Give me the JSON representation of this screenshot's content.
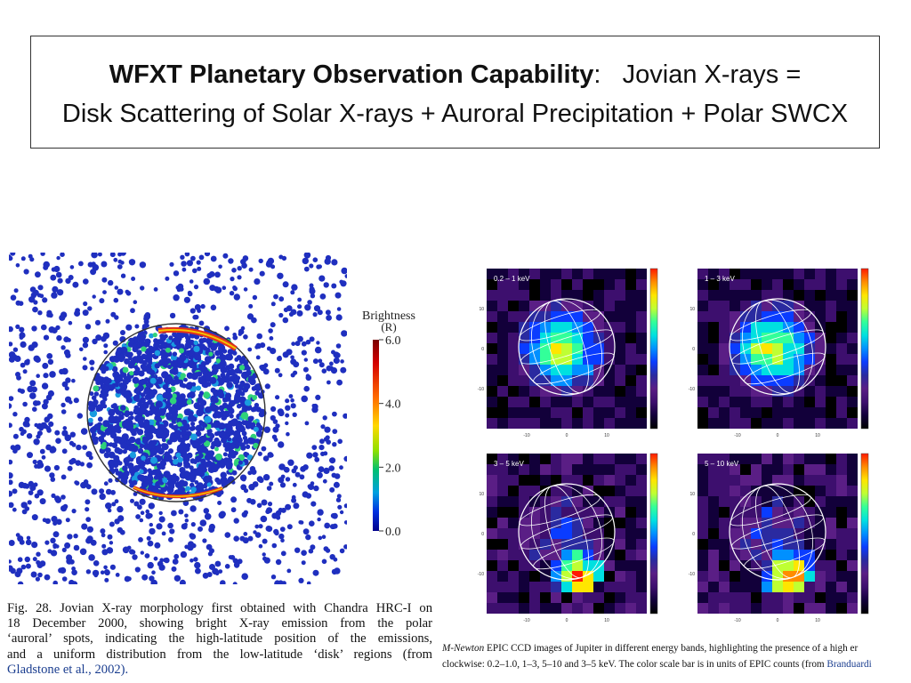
{
  "slide": {
    "title_bold": "WFXT Planetary Observation Capability",
    "title_colon": ":",
    "title_rest": "Jovian X-rays =",
    "title_line2": "Disk Scattering of Solar X-rays + Auroral Precipitation + Polar SWCX"
  },
  "left_figure": {
    "colorbar_title": "Brightness",
    "colorbar_unit": "(R)",
    "colorbar_ticks": [
      "6.0",
      "4.0",
      "2.0",
      "0.0"
    ],
    "caption_lines": [
      "Fig. 28.  Jovian X-ray morphology first obtained with Chandra HRC-I on",
      "18 December 2000, showing bright X-ray emission from the polar",
      "‘auroral’ spots, indicating the high-latitude position of the emissions,",
      "and a uniform distribution from the low-latitude ‘disk’ regions (from"
    ],
    "caption_last": "Gladstone et al., 2002)."
  },
  "right_figure": {
    "panels": [
      {
        "label": "0.2 – 1 keV"
      },
      {
        "label": "1 – 3 keV"
      },
      {
        "label": "3 – 5 keV"
      },
      {
        "label": "5 – 10 keV"
      }
    ],
    "tick_neg": "-10",
    "tick_zero": "0",
    "tick_pos": "10",
    "caption_line1_italic": "M-Newton",
    "caption_line1_rest": " EPIC CCD images of Jupiter in different energy bands, highlighting the presence of a high er",
    "caption_line2_rest": "clockwise: 0.2–1.0, 1–3, 5–10 and 3–5 keV. The color scale bar is in units of EPIC counts (from ",
    "caption_line2_ref": "Branduardi"
  },
  "colors": {
    "dot_blue": "#1f2fbf",
    "bar_top": "#8b0000",
    "bar_bottom": "#00008b"
  }
}
